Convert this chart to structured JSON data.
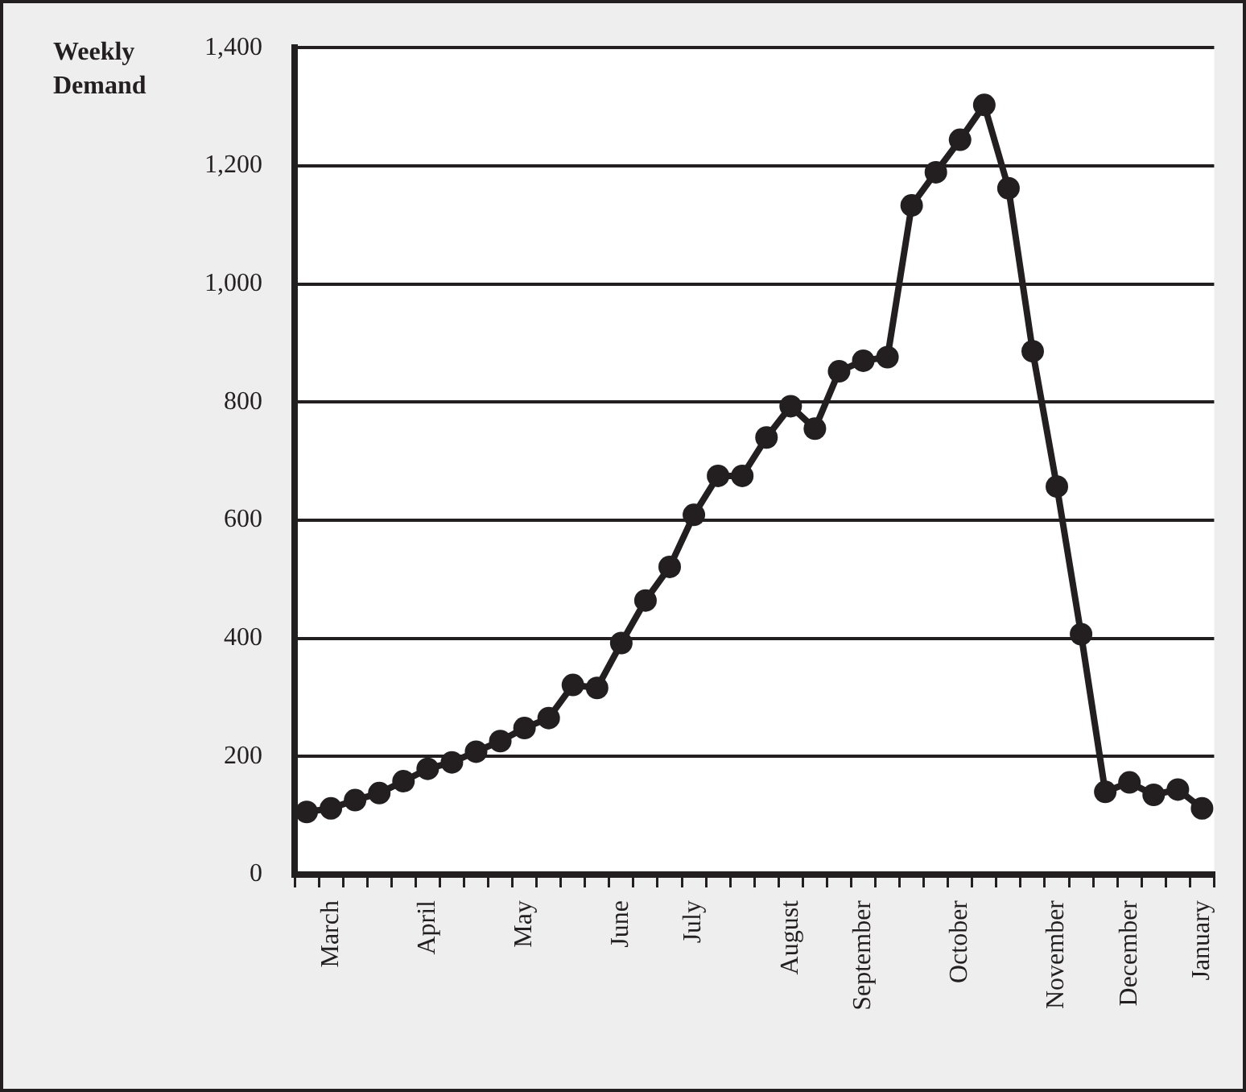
{
  "chart_data": {
    "type": "line",
    "ylabel": "Weekly Demand",
    "categories": [
      null,
      "March",
      null,
      null,
      null,
      "April",
      null,
      null,
      null,
      "May",
      null,
      null,
      null,
      "June",
      null,
      null,
      "July",
      null,
      null,
      null,
      "August",
      null,
      null,
      "September",
      null,
      null,
      null,
      "October",
      null,
      null,
      null,
      "November",
      null,
      null,
      "December",
      null,
      null,
      "January"
    ],
    "series": [
      {
        "color": "#231f20",
        "values": [
          106,
          112,
          126,
          138,
          158,
          179,
          190,
          208,
          226,
          248,
          265,
          321,
          316,
          392,
          464,
          521,
          609,
          675,
          675,
          740,
          793,
          755,
          852,
          870,
          876,
          1133,
          1189,
          1244,
          1303,
          1162,
          886,
          657,
          407,
          140,
          156,
          135,
          144,
          112
        ]
      }
    ],
    "ylim": [
      0,
      1400
    ],
    "yticks": [
      0,
      200,
      400,
      600,
      800,
      {
        "value": 1000,
        "label": "1,000"
      },
      {
        "value": 1200,
        "label": "1,200"
      },
      {
        "value": 1400,
        "label": "1,400"
      }
    ],
    "grid": "y",
    "legend": false,
    "marker": "circle",
    "line_style": "solid"
  }
}
